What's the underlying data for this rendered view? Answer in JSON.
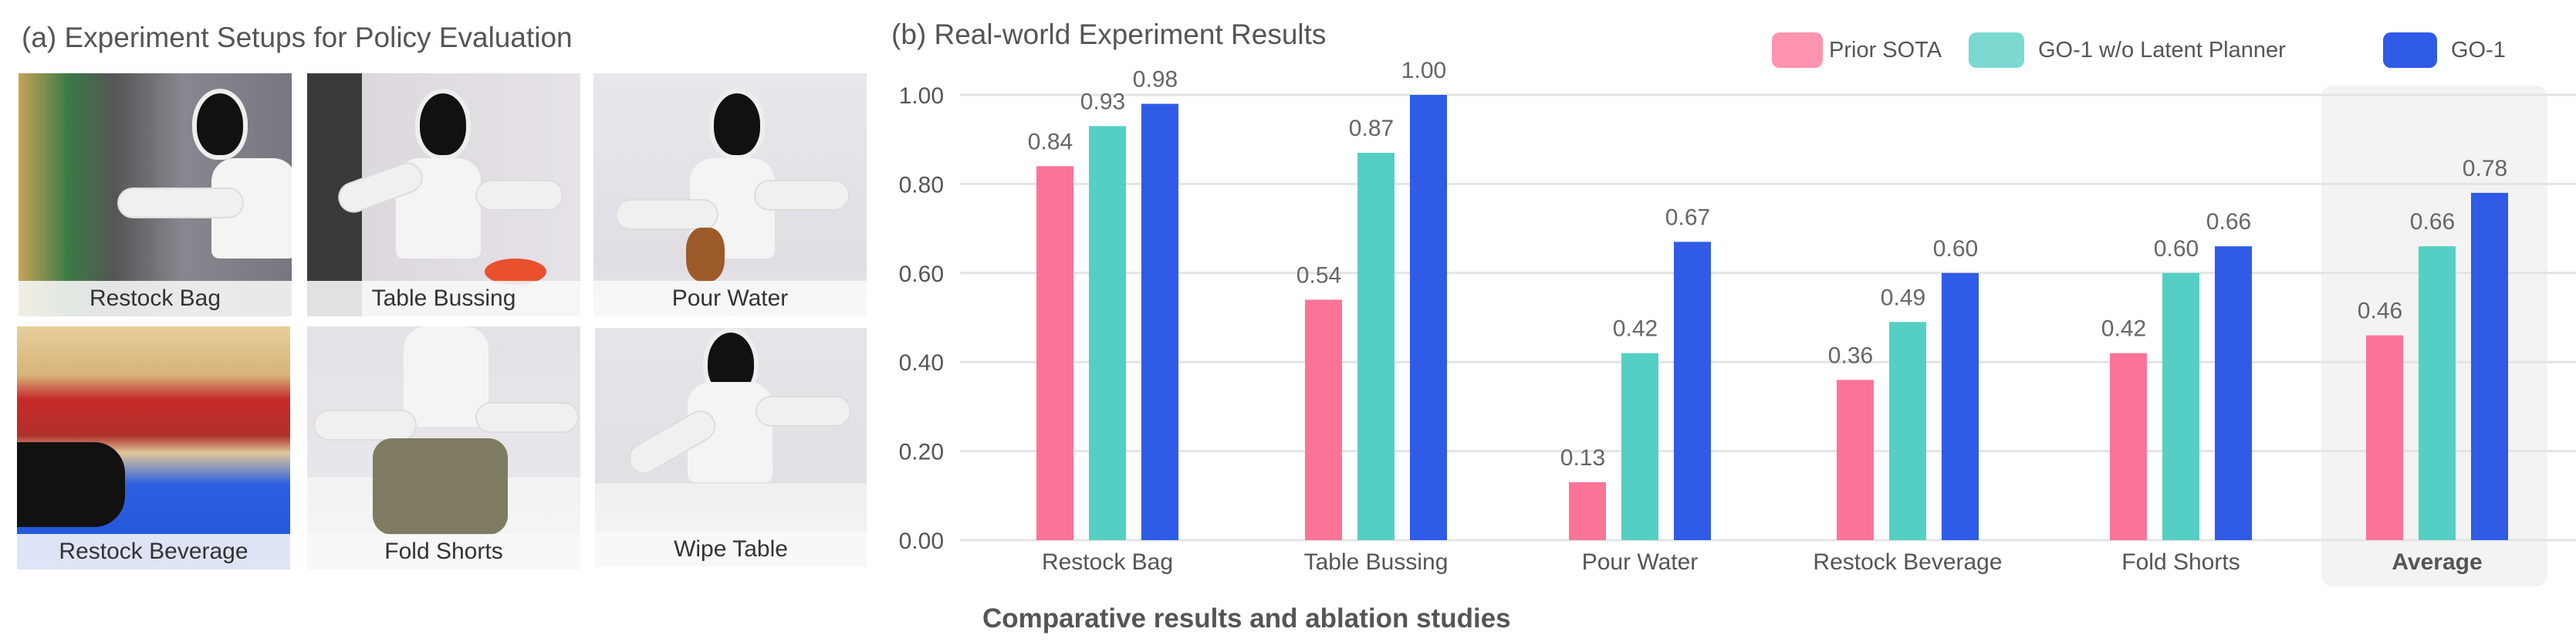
{
  "panel_a": {
    "title": "(a) Experiment Setups for Policy Evaluation",
    "photos": [
      {
        "label": "Restock Bag"
      },
      {
        "label": "Table Bussing"
      },
      {
        "label": "Pour Water"
      },
      {
        "label": "Restock Beverage"
      },
      {
        "label": "Fold Shorts"
      },
      {
        "label": "Wipe Table"
      }
    ]
  },
  "caption": "Comparative results and ablation studies",
  "chart_data": {
    "type": "bar",
    "title": "(b) Real-world Experiment Results",
    "categories": [
      "Restock Bag",
      "Table Bussing",
      "Pour Water",
      "Restock Beverage",
      "Fold Shorts",
      "Average"
    ],
    "highlighted_category": "Average",
    "series": [
      {
        "name": "Prior SOTA",
        "color": "#fb7497",
        "legend_color": "#ff94b0",
        "values": [
          0.84,
          0.54,
          0.13,
          0.36,
          0.42,
          0.46
        ]
      },
      {
        "name": "GO-1 w/o Latent Planner",
        "color": "#55cfc4",
        "legend_color": "#7bd9d2",
        "values": [
          0.93,
          0.87,
          0.42,
          0.49,
          0.6,
          0.66
        ]
      },
      {
        "name": "GO-1",
        "color": "#2f5be6",
        "legend_color": "#2f5be6",
        "values": [
          0.98,
          1.0,
          0.67,
          0.6,
          0.66,
          0.78
        ]
      }
    ],
    "data_labels": [
      [
        "0.84",
        "0.54",
        "0.13",
        "0.36",
        "0.42",
        "0.46"
      ],
      [
        "0.93",
        "0.87",
        "0.42",
        "0.49",
        "0.60",
        "0.66"
      ],
      [
        "0.98",
        "1.00",
        "0.67",
        "0.60",
        "0.66",
        "0.78"
      ]
    ],
    "yticks": [
      "0.00",
      "0.20",
      "0.40",
      "0.60",
      "0.80",
      "1.00"
    ],
    "ylim": [
      0,
      1
    ],
    "xlabel": "",
    "ylabel": "",
    "grid": true,
    "legend": "top-right"
  }
}
